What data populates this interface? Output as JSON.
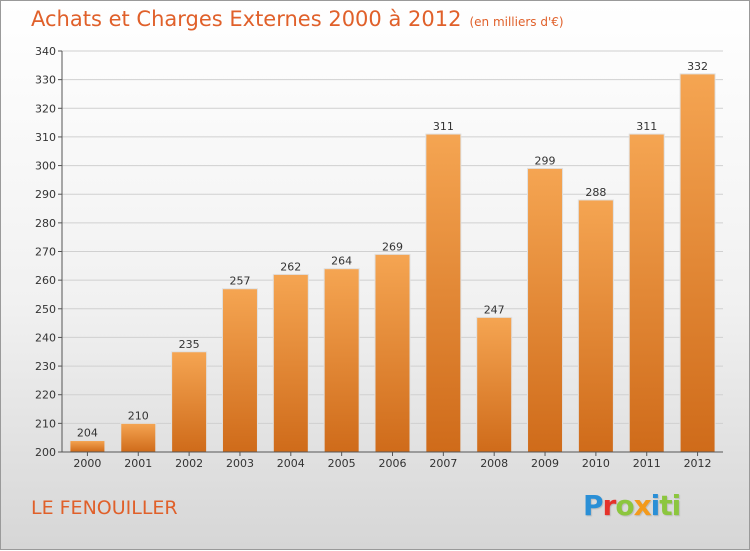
{
  "title": "Achats et Charges Externes 2000 à 2012",
  "unit": "(en milliers d'€)",
  "commune": "LE FENOUILLER",
  "logo": [
    "P",
    "r",
    "o",
    "x",
    "i",
    "ti"
  ],
  "colors": {
    "title": "#e0602a",
    "bar_top": "#f5a552",
    "bar_bottom": "#cf6b1a"
  },
  "chart_data": {
    "type": "bar",
    "categories": [
      "2000",
      "2001",
      "2002",
      "2003",
      "2004",
      "2005",
      "2006",
      "2007",
      "2008",
      "2009",
      "2010",
      "2011",
      "2012"
    ],
    "values": [
      204,
      210,
      235,
      257,
      262,
      264,
      269,
      311,
      247,
      299,
      288,
      311,
      332
    ],
    "ylim": [
      200,
      340
    ],
    "yticks": [
      200,
      210,
      220,
      230,
      240,
      250,
      260,
      270,
      280,
      290,
      300,
      310,
      320,
      330,
      340
    ],
    "grid": true,
    "xlabel": "",
    "ylabel": ""
  }
}
